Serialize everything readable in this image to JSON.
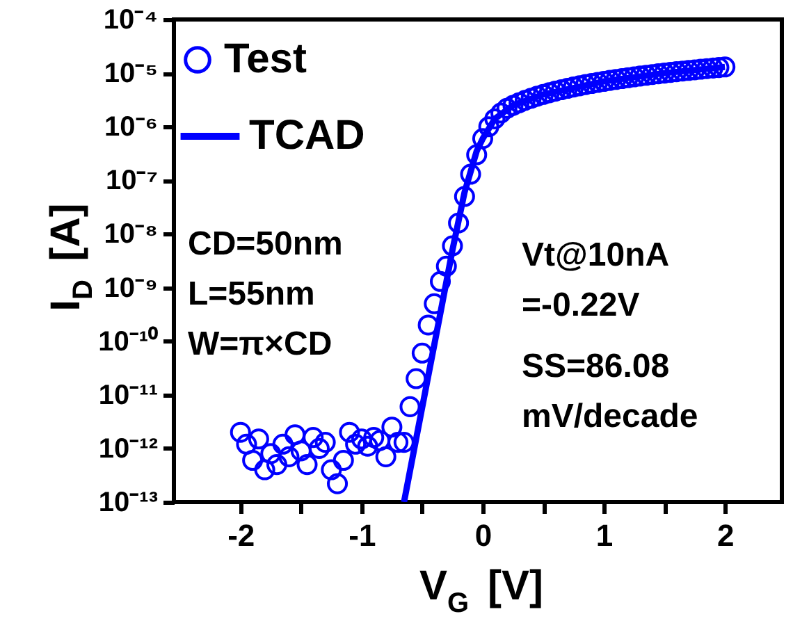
{
  "chart_data": {
    "type": "scatter",
    "xlabel": "V$_{G}$ [V]",
    "ylabel": "I$_{D}$ [A]",
    "log": "y",
    "grid": false,
    "legend": "top left",
    "xlim": [
      -2.55,
      2.47
    ],
    "xticks": [
      -2,
      {
        "value": -1.5,
        "label": null
      },
      -1,
      {
        "value": -0.5,
        "label": null
      },
      0,
      {
        "value": 0.5,
        "label": null
      },
      1,
      {
        "value": 1.5,
        "label": null
      },
      2
    ],
    "ylim": [
      1e-13,
      0.0001
    ],
    "yticks": [
      {
        "value": 0.0001,
        "label": "10⁻⁴"
      },
      {
        "value": 1e-05,
        "label": "10⁻⁵"
      },
      {
        "value": 1e-06,
        "label": "10⁻⁶"
      },
      {
        "value": 1e-07,
        "label": "10⁻⁷"
      },
      {
        "value": 1e-08,
        "label": "10⁻⁸"
      },
      {
        "value": 1e-09,
        "label": "10⁻⁹"
      },
      {
        "value": 1e-10,
        "label": "10⁻¹⁰"
      },
      {
        "value": 1e-11,
        "label": "10⁻¹¹"
      },
      {
        "value": 1e-12,
        "label": "10⁻¹²"
      },
      {
        "value": 1e-13,
        "label": "10⁻¹³"
      }
    ],
    "annotations": [
      "CD=50nm\nL=55nm\nW=π×CD",
      "Vt@10nA\n=-0.22V",
      "SS=86.08\nmV/decade"
    ],
    "series": [
      {
        "name": "Test",
        "type": "scatter",
        "marker": "circle",
        "color": "#0000ff",
        "x": [
          -2.0,
          -1.95,
          -1.9,
          -1.85,
          -1.8,
          -1.75,
          -1.7,
          -1.65,
          -1.6,
          -1.55,
          -1.5,
          -1.45,
          -1.4,
          -1.35,
          -1.3,
          -1.25,
          -1.2,
          -1.15,
          -1.1,
          -1.05,
          -1.0,
          -0.95,
          -0.9,
          -0.85,
          -0.8,
          -0.75,
          -0.7,
          -0.65,
          -0.6,
          -0.55,
          -0.5,
          -0.45,
          -0.4,
          -0.35,
          -0.3,
          -0.25,
          -0.2,
          -0.15,
          -0.1,
          -0.05,
          0.0,
          0.05,
          0.1,
          0.15,
          0.2,
          0.25,
          0.3,
          0.35,
          0.4,
          0.45,
          0.5,
          0.55,
          0.6,
          0.65,
          0.7,
          0.75,
          0.8,
          0.85,
          0.9,
          0.95,
          1.0,
          1.05,
          1.1,
          1.15,
          1.2,
          1.25,
          1.3,
          1.35,
          1.4,
          1.45,
          1.5,
          1.55,
          1.6,
          1.65,
          1.7,
          1.75,
          1.8,
          1.85,
          1.9,
          1.95,
          2.0
        ],
        "values": [
          2e-12,
          1.2e-12,
          6e-13,
          1.5e-12,
          4e-13,
          8e-13,
          5e-13,
          1.2e-12,
          7e-13,
          1.8e-12,
          9e-13,
          5e-13,
          1.6e-12,
          1e-12,
          1.3e-12,
          4e-13,
          2.2e-13,
          6e-13,
          2e-12,
          1.2e-12,
          1.5e-12,
          1.1e-12,
          1.6e-12,
          1.4e-12,
          7e-13,
          2.5e-12,
          1.3e-12,
          1.3e-12,
          6e-12,
          2e-11,
          6e-11,
          2e-10,
          5e-10,
          1.3e-09,
          2.5e-09,
          6e-09,
          1.6e-08,
          5e-08,
          1.3e-07,
          3e-07,
          6e-07,
          1e-06,
          1.4e-06,
          1.8e-06,
          2.2e-06,
          2.5e-06,
          2.8e-06,
          3.1e-06,
          3.4e-06,
          3.7e-06,
          4e-06,
          4.3e-06,
          4.6e-06,
          4.9e-06,
          5.2e-06,
          5.5e-06,
          5.8e-06,
          6.1e-06,
          6.4e-06,
          6.7e-06,
          7e-06,
          7.3e-06,
          7.6e-06,
          7.9e-06,
          8.2e-06,
          8.5e-06,
          8.8e-06,
          9.1e-06,
          9.4e-06,
          9.7e-06,
          1e-05,
          1.03e-05,
          1.06e-05,
          1.09e-05,
          1.12e-05,
          1.15e-05,
          1.18e-05,
          1.21e-05,
          1.24e-05,
          1.27e-05,
          1.3e-05
        ]
      },
      {
        "name": "TCAD",
        "type": "line",
        "line_style": "solid",
        "color": "#0000ff",
        "x": [
          -0.65,
          -0.5,
          -0.35,
          -0.25,
          -0.15,
          -0.05,
          0.0,
          0.1,
          0.25,
          0.5,
          1.0,
          1.5,
          2.0
        ],
        "values": [
          1e-13,
          5.8e-12,
          3.3e-10,
          5e-09,
          6e-08,
          3.5e-07,
          6e-07,
          1.4e-06,
          2.5e-06,
          4e-06,
          7e-06,
          1e-05,
          1.3e-05
        ]
      }
    ]
  }
}
